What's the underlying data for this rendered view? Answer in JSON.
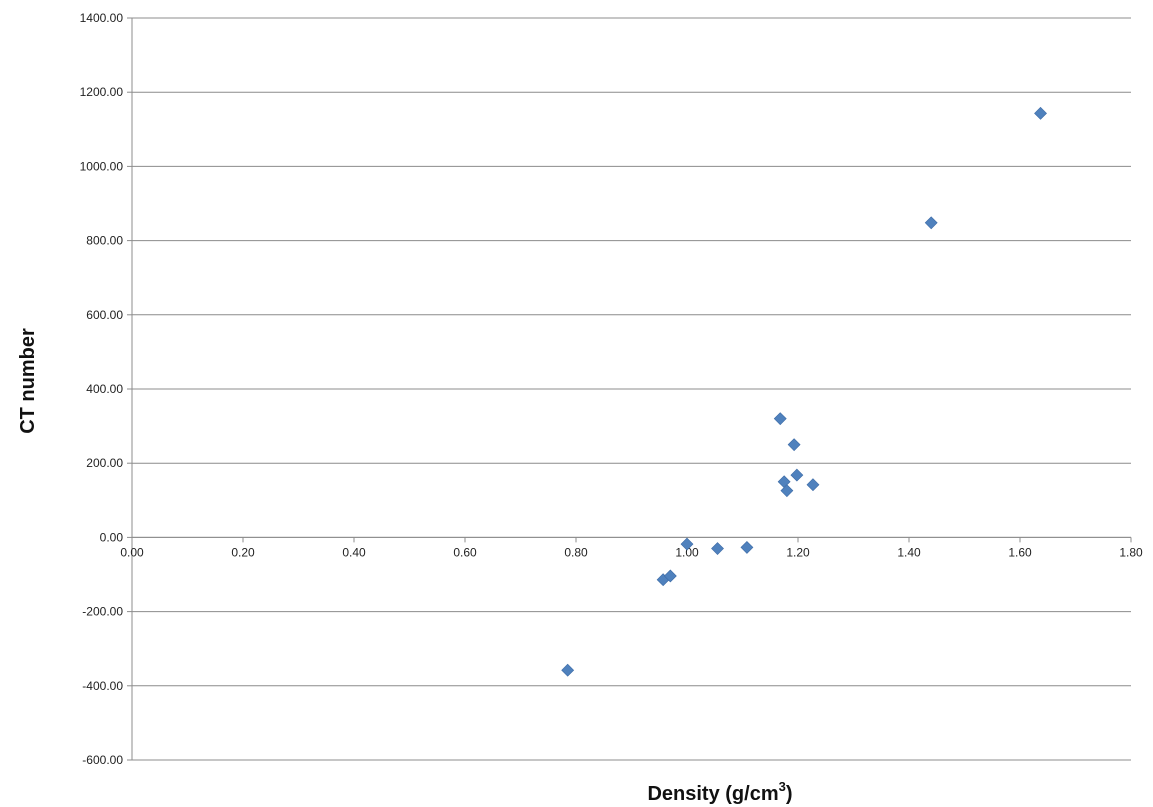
{
  "chart_data": {
    "type": "scatter",
    "title": "",
    "xlabel": "Density  (g/cm",
    "xlabel_sup": "3",
    "xlabel_end": ")",
    "ylabel": "CT number",
    "xlim": [
      0,
      1.8
    ],
    "ylim": [
      -600,
      1400
    ],
    "xticks": [
      0,
      0.2,
      0.4,
      0.6,
      0.8,
      1.0,
      1.2,
      1.4,
      1.6,
      1.8
    ],
    "xtick_labels": [
      "0.00",
      "0.20",
      "0.40",
      "0.60",
      "0.80",
      "1.00",
      "1.20",
      "1.40",
      "1.60",
      "1.80"
    ],
    "yticks": [
      -600,
      -400,
      -200,
      0,
      200,
      400,
      600,
      800,
      1000,
      1200,
      1400
    ],
    "ytick_labels": [
      "-600.00",
      "-400.00",
      "-200.00",
      "0.00",
      "200.00",
      "400.00",
      "600.00",
      "800.00",
      "1000.00",
      "1200.00",
      "1400.00"
    ],
    "grid": "horizontal",
    "marker": "diamond",
    "marker_color": "#4F81BD",
    "series": [
      {
        "points": [
          {
            "x": 0.785,
            "y": -358
          },
          {
            "x": 0.957,
            "y": -114
          },
          {
            "x": 0.97,
            "y": -104
          },
          {
            "x": 1.0,
            "y": -18
          },
          {
            "x": 1.055,
            "y": -30
          },
          {
            "x": 1.108,
            "y": -27
          },
          {
            "x": 1.168,
            "y": 320
          },
          {
            "x": 1.175,
            "y": 150
          },
          {
            "x": 1.18,
            "y": 126
          },
          {
            "x": 1.193,
            "y": 250
          },
          {
            "x": 1.198,
            "y": 168
          },
          {
            "x": 1.227,
            "y": 142
          },
          {
            "x": 1.44,
            "y": 848
          },
          {
            "x": 1.637,
            "y": 1143
          }
        ]
      }
    ]
  }
}
